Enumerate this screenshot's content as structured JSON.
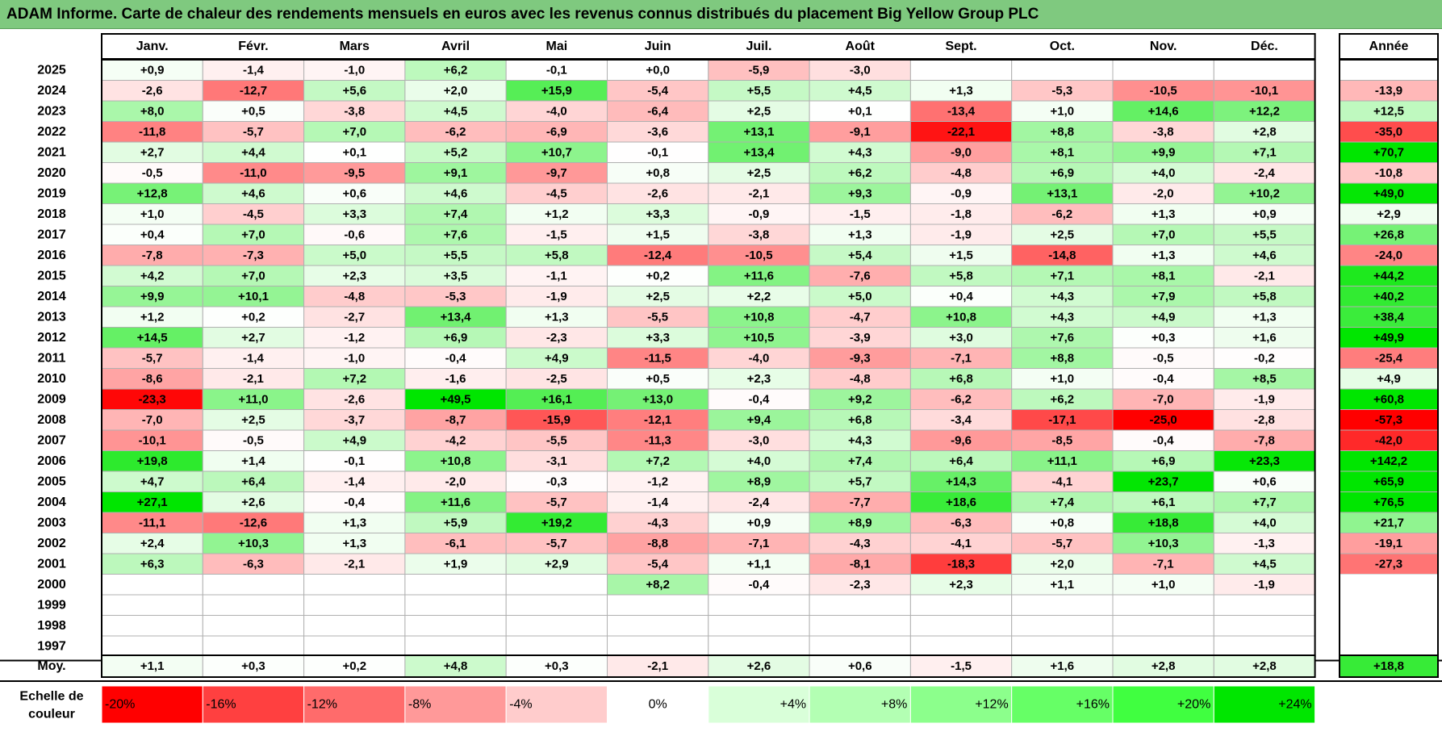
{
  "title": "ADAM Informe. Carte de chaleur des rendements mensuels en euros avec les revenus connus distribués du placement Big Yellow Group PLC",
  "chart_data": {
    "type": "heatmap",
    "months": [
      "Janv.",
      "Févr.",
      "Mars",
      "Avril",
      "Mai",
      "Juin",
      "Juil.",
      "Août",
      "Sept.",
      "Oct.",
      "Nov.",
      "Déc."
    ],
    "year_header": "Année",
    "avg_label": "Moy.",
    "years": [
      "2025",
      "2024",
      "2023",
      "2022",
      "2021",
      "2020",
      "2019",
      "2018",
      "2017",
      "2016",
      "2015",
      "2014",
      "2013",
      "2012",
      "2011",
      "2010",
      "2009",
      "2008",
      "2007",
      "2006",
      "2005",
      "2004",
      "2003",
      "2002",
      "2001",
      "2000",
      "1999",
      "1998",
      "1997"
    ],
    "values": [
      [
        0.9,
        -1.4,
        -1.0,
        6.2,
        -0.1,
        0.0,
        -5.9,
        -3.0,
        null,
        null,
        null,
        null
      ],
      [
        -2.6,
        -12.7,
        5.6,
        2.0,
        15.9,
        -5.4,
        5.5,
        4.5,
        1.3,
        -5.3,
        -10.5,
        -10.1
      ],
      [
        8.0,
        0.5,
        -3.8,
        4.5,
        -4.0,
        -6.4,
        2.5,
        0.1,
        -13.4,
        1.0,
        14.6,
        12.2
      ],
      [
        -11.8,
        -5.7,
        7.0,
        -6.2,
        -6.9,
        -3.6,
        13.1,
        -9.1,
        -22.1,
        8.8,
        -3.8,
        2.8
      ],
      [
        2.7,
        4.4,
        0.1,
        5.2,
        10.7,
        -0.1,
        13.4,
        4.3,
        -9.0,
        8.1,
        9.9,
        7.1
      ],
      [
        -0.5,
        -11.0,
        -9.5,
        9.1,
        -9.7,
        0.8,
        2.5,
        6.2,
        -4.8,
        6.9,
        4.0,
        -2.4
      ],
      [
        12.8,
        4.6,
        0.6,
        4.6,
        -4.5,
        -2.6,
        -2.1,
        9.3,
        -0.9,
        13.1,
        -2.0,
        10.2
      ],
      [
        1.0,
        -4.5,
        3.3,
        7.4,
        1.2,
        3.3,
        -0.9,
        -1.5,
        -1.8,
        -6.2,
        1.3,
        0.9
      ],
      [
        0.4,
        7.0,
        -0.6,
        7.6,
        -1.5,
        1.5,
        -3.8,
        1.3,
        -1.9,
        2.5,
        7.0,
        5.5
      ],
      [
        -7.8,
        -7.3,
        5.0,
        5.5,
        5.8,
        -12.4,
        -10.5,
        5.4,
        1.5,
        -14.8,
        1.3,
        4.6
      ],
      [
        4.2,
        7.0,
        2.3,
        3.5,
        -1.1,
        0.2,
        11.6,
        -7.6,
        5.8,
        7.1,
        8.1,
        -2.1
      ],
      [
        9.9,
        10.1,
        -4.8,
        -5.3,
        -1.9,
        2.5,
        2.2,
        5.0,
        0.4,
        4.3,
        7.9,
        5.8
      ],
      [
        1.2,
        0.2,
        -2.7,
        13.4,
        1.3,
        -5.5,
        10.8,
        -4.7,
        10.8,
        4.3,
        4.9,
        1.3
      ],
      [
        14.5,
        2.7,
        -1.2,
        6.9,
        -2.3,
        3.3,
        10.5,
        -3.9,
        3.0,
        7.6,
        0.3,
        1.6
      ],
      [
        -5.7,
        -1.4,
        -1.0,
        -0.4,
        4.9,
        -11.5,
        -4.0,
        -9.3,
        -7.1,
        8.8,
        -0.5,
        -0.2
      ],
      [
        -8.6,
        -2.1,
        7.2,
        -1.6,
        -2.5,
        0.5,
        2.3,
        -4.8,
        6.8,
        1.0,
        -0.4,
        8.5
      ],
      [
        -23.3,
        11.0,
        -2.6,
        49.5,
        16.1,
        13.0,
        -0.4,
        9.2,
        -6.2,
        6.2,
        -7.0,
        -1.9
      ],
      [
        -7.0,
        2.5,
        -3.7,
        -8.7,
        -15.9,
        -12.1,
        9.4,
        6.8,
        -3.4,
        -17.1,
        -25.0,
        -2.8
      ],
      [
        -10.1,
        -0.5,
        4.9,
        -4.2,
        -5.5,
        -11.3,
        -3.0,
        4.3,
        -9.6,
        -8.5,
        -0.4,
        -7.8
      ],
      [
        19.8,
        1.4,
        -0.1,
        10.8,
        -3.1,
        7.2,
        4.0,
        7.4,
        6.4,
        11.1,
        6.9,
        23.3
      ],
      [
        4.7,
        6.4,
        -1.4,
        -2.0,
        -0.3,
        -1.2,
        8.9,
        5.7,
        14.3,
        -4.1,
        23.7,
        0.6
      ],
      [
        27.1,
        2.6,
        -0.4,
        11.6,
        -5.7,
        -1.4,
        -2.4,
        -7.7,
        18.6,
        7.4,
        6.1,
        7.7
      ],
      [
        -11.1,
        -12.6,
        1.3,
        5.9,
        19.2,
        -4.3,
        0.9,
        8.9,
        -6.3,
        0.8,
        18.8,
        4.0
      ],
      [
        2.4,
        10.3,
        1.3,
        -6.1,
        -5.7,
        -8.8,
        -7.1,
        -4.3,
        -4.1,
        -5.7,
        10.3,
        -1.3
      ],
      [
        6.3,
        -6.3,
        -2.1,
        1.9,
        2.9,
        -5.4,
        1.1,
        -8.1,
        -18.3,
        2.0,
        -7.1,
        4.5
      ],
      [
        null,
        null,
        null,
        null,
        null,
        8.2,
        -0.4,
        -2.3,
        2.3,
        1.1,
        1.0,
        -1.9
      ],
      [
        null,
        null,
        null,
        null,
        null,
        null,
        null,
        null,
        null,
        null,
        null,
        null
      ],
      [
        null,
        null,
        null,
        null,
        null,
        null,
        null,
        null,
        null,
        null,
        null,
        null
      ],
      [
        null,
        null,
        null,
        null,
        null,
        null,
        null,
        null,
        null,
        null,
        null,
        null
      ]
    ],
    "annual": [
      null,
      -13.9,
      12.5,
      -35.0,
      70.7,
      -10.8,
      49.0,
      2.9,
      26.8,
      -24.0,
      44.2,
      40.2,
      38.4,
      49.9,
      -25.4,
      4.9,
      60.8,
      -57.3,
      -42.0,
      142.2,
      65.9,
      76.5,
      21.7,
      -19.1,
      -27.3,
      null,
      null,
      null,
      null
    ],
    "averages": [
      1.1,
      0.3,
      0.2,
      4.8,
      0.3,
      -2.1,
      2.6,
      0.6,
      -1.5,
      1.6,
      2.8,
      2.8
    ],
    "annual_average": 18.8,
    "scale_label": [
      "Echelle de",
      "couleur"
    ],
    "scale": [
      {
        "label": "-20%",
        "color": "#ff0000"
      },
      {
        "label": "-16%",
        "color": "#ff4040"
      },
      {
        "label": "-12%",
        "color": "#ff6b6b"
      },
      {
        "label": "-8%",
        "color": "#ff9999"
      },
      {
        "label": "-4%",
        "color": "#ffcccc"
      },
      {
        "label": "0%",
        "color": "#ffffff"
      },
      {
        "label": "+4%",
        "color": "#d9ffd9"
      },
      {
        "label": "+8%",
        "color": "#b3ffb3"
      },
      {
        "label": "+12%",
        "color": "#8cff8c"
      },
      {
        "label": "+16%",
        "color": "#66ff66"
      },
      {
        "label": "+20%",
        "color": "#40ff40"
      },
      {
        "label": "+24%",
        "color": "#00e600"
      }
    ],
    "colors": {
      "negative_max": "#ff0000",
      "positive_max": "#00e600",
      "neutral": "#ffffff",
      "title_bar": "#7fc97f"
    }
  }
}
